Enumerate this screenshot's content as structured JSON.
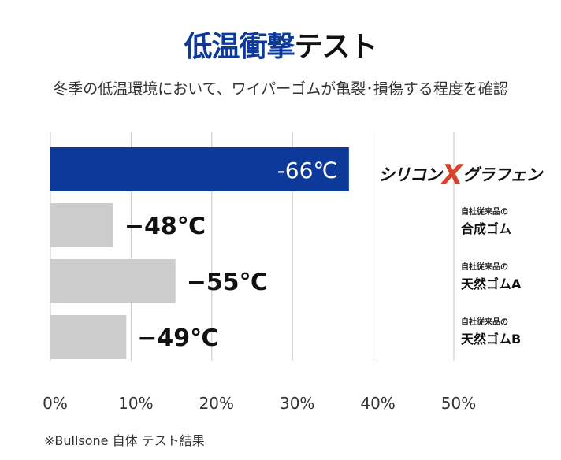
{
  "header": {
    "title_accent": "低温衝撃",
    "title_rest": "テスト",
    "subtitle": "冬季の低温環境において、ワイパーゴムが亀裂･損傷する程度を確認"
  },
  "products": [
    {
      "brand_left": "シリコン",
      "brand_x": "X",
      "brand_right": "グラフェン"
    },
    {
      "small": "自社従来品の",
      "big": "合成ゴム"
    },
    {
      "small": "自社従来品の",
      "big": "天然ゴムA"
    },
    {
      "small": "自社従来品の",
      "big": "天然ゴムB"
    }
  ],
  "footnote": "※Bullsone 自体 テスト結果",
  "colors": {
    "highlight": "#0d3a9a",
    "muted": "#cccccc",
    "brand_x": "#d8432a"
  },
  "chart_data": {
    "type": "bar",
    "orientation": "horizontal",
    "categories": [
      "シリコンXグラフェン",
      "自社従来品の合成ゴム",
      "自社従来品の天然ゴムA",
      "自社従来品の天然ゴムB"
    ],
    "values": [
      37,
      7.8,
      15.5,
      9.4
    ],
    "data_labels": [
      "-66℃",
      "−48℃",
      "−55℃",
      "−49℃"
    ],
    "xlim": [
      0,
      50
    ],
    "x_ticks": [
      0,
      10,
      20,
      30,
      40,
      50
    ],
    "x_tick_labels": [
      "0%",
      "10%",
      "20%",
      "30%",
      "40%",
      "50%"
    ],
    "grid": true
  }
}
